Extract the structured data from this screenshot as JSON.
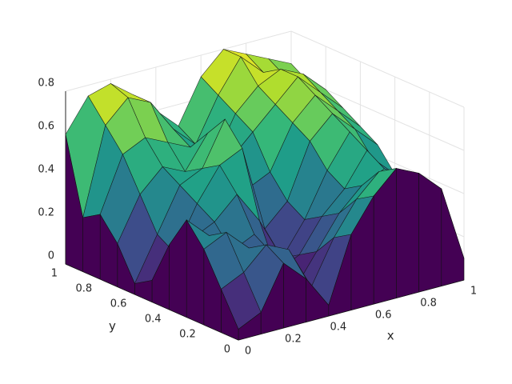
{
  "chart_data": {
    "type": "surface",
    "colormap": "viridis",
    "grid": true,
    "xlabel": "x",
    "ylabel": "y",
    "x": [
      0,
      0.1,
      0.2,
      0.3,
      0.4,
      0.5,
      0.6,
      0.7,
      0.8,
      0.9,
      1
    ],
    "y": [
      0,
      0.1,
      0.2,
      0.3,
      0.4,
      0.5,
      0.6,
      0.7,
      0.8,
      0.9,
      1
    ],
    "z": [
      [
        0.05,
        0.1,
        0.3,
        0.2,
        0.05,
        0.35,
        0.5,
        0.6,
        0.55,
        0.45,
        0.1
      ],
      [
        0.2,
        0.25,
        0.35,
        0.3,
        0.1,
        0.3,
        0.45,
        0.55,
        0.5,
        0.4,
        0.15
      ],
      [
        0.35,
        0.4,
        0.3,
        0.25,
        0.05,
        0.2,
        0.35,
        0.45,
        0.5,
        0.35,
        0.2
      ],
      [
        0.45,
        0.35,
        0.25,
        0.3,
        0.1,
        0.15,
        0.3,
        0.4,
        0.55,
        0.4,
        0.3
      ],
      [
        0.3,
        0.3,
        0.35,
        0.45,
        0.3,
        0.1,
        0.25,
        0.45,
        0.6,
        0.45,
        0.35
      ],
      [
        0.1,
        0.2,
        0.4,
        0.55,
        0.6,
        0.2,
        0.3,
        0.55,
        0.65,
        0.55,
        0.45
      ],
      [
        0.05,
        0.25,
        0.45,
        0.5,
        0.7,
        0.35,
        0.4,
        0.6,
        0.7,
        0.6,
        0.5
      ],
      [
        0.2,
        0.4,
        0.5,
        0.45,
        0.6,
        0.45,
        0.55,
        0.65,
        0.75,
        0.65,
        0.55
      ],
      [
        0.3,
        0.55,
        0.6,
        0.55,
        0.5,
        0.4,
        0.6,
        0.7,
        0.75,
        0.7,
        0.6
      ],
      [
        0.25,
        0.65,
        0.75,
        0.7,
        0.55,
        0.45,
        0.65,
        0.8,
        0.7,
        0.65,
        0.6
      ],
      [
        0.6,
        0.75,
        0.78,
        0.7,
        0.6,
        0.5,
        0.7,
        0.8,
        0.75,
        0.7,
        0.65
      ]
    ],
    "xlim": [
      0,
      1
    ],
    "ylim": [
      0,
      1
    ],
    "zlim": [
      0,
      0.8
    ],
    "xticks": [
      0,
      0.2,
      0.4,
      0.6,
      0.8,
      1
    ],
    "yticks": [
      0,
      0.2,
      0.4,
      0.6,
      0.8,
      1
    ],
    "zticks": [
      0,
      0.2,
      0.4,
      0.6,
      0.8
    ]
  }
}
